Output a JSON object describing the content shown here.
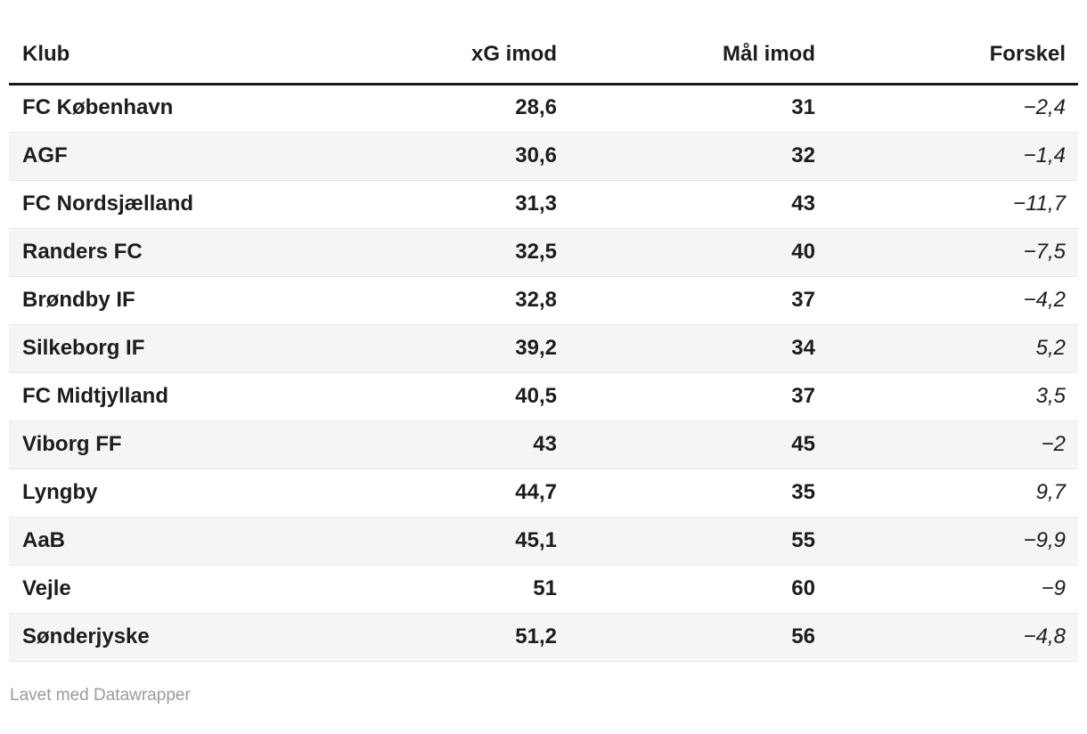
{
  "chart_data": {
    "type": "table",
    "columns": [
      "Klub",
      "xG imod",
      "Mål imod",
      "Forskel"
    ],
    "rows": [
      [
        "FC København",
        "28,6",
        "31",
        "−2,4"
      ],
      [
        "AGF",
        "30,6",
        "32",
        "−1,4"
      ],
      [
        "FC Nordsjælland",
        "31,3",
        "43",
        "−11,7"
      ],
      [
        "Randers FC",
        "32,5",
        "40",
        "−7,5"
      ],
      [
        "Brøndby IF",
        "32,8",
        "37",
        "−4,2"
      ],
      [
        "Silkeborg IF",
        "39,2",
        "34",
        "5,2"
      ],
      [
        "FC Midtjylland",
        "40,5",
        "37",
        "3,5"
      ],
      [
        "Viborg FF",
        "43",
        "45",
        "−2"
      ],
      [
        "Lyngby",
        "44,7",
        "35",
        "9,7"
      ],
      [
        "AaB",
        "45,1",
        "55",
        "−9,9"
      ],
      [
        "Vejle",
        "51",
        "60",
        "−9"
      ],
      [
        "Sønderjyske",
        "51,2",
        "56",
        "−4,8"
      ]
    ]
  },
  "footer": {
    "credit": "Lavet med Datawrapper"
  },
  "colors": {
    "text": "#1d1d1d",
    "header_border": "#1a1a1a",
    "stripe": "#f5f5f5",
    "row_border": "#e8e8e8",
    "footer_text": "#9b9b9b"
  }
}
